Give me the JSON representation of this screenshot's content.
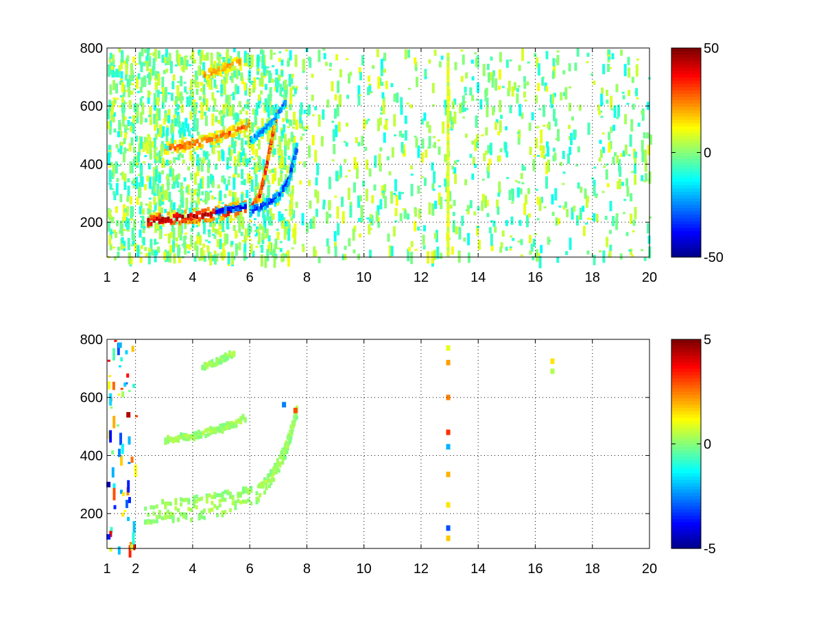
{
  "chart_data": [
    {
      "type": "heatmap",
      "title": "",
      "xlabel": "",
      "ylabel": "",
      "xlim": [
        1,
        20
      ],
      "ylim": [
        80,
        800
      ],
      "x_ticks": [
        1,
        2,
        4,
        6,
        8,
        10,
        12,
        14,
        16,
        18,
        20
      ],
      "y_ticks": [
        200,
        400,
        600,
        800
      ],
      "grid": true,
      "colormap": "jet",
      "colorbar": {
        "min": -50,
        "max": 50,
        "ticks": [
          50,
          0,
          -50
        ]
      },
      "features": [
        {
          "label": "lower band",
          "x": [
            2.4,
            2.8,
            3.4,
            4.0,
            4.6,
            5.2,
            5.8
          ],
          "y": [
            210,
            215,
            222,
            228,
            235,
            245,
            258
          ],
          "value": 48,
          "spread": 22
        },
        {
          "label": "lower band negative core",
          "x": [
            4.8,
            5.3,
            5.8
          ],
          "y": [
            245,
            252,
            262
          ],
          "value": -45,
          "spread": 8
        },
        {
          "label": "middle band",
          "x": [
            3.0,
            3.6,
            4.2,
            4.8,
            5.4,
            5.9
          ],
          "y": [
            460,
            470,
            482,
            498,
            520,
            545
          ],
          "value": 30,
          "spread": 18
        },
        {
          "label": "upper band",
          "x": [
            4.3,
            4.7,
            5.1,
            5.6
          ],
          "y": [
            710,
            725,
            740,
            760
          ],
          "value": 25,
          "spread": 16
        },
        {
          "label": "curve to 600",
          "x": [
            6.0,
            6.3,
            6.5,
            6.7,
            6.9
          ],
          "y": [
            255,
            300,
            380,
            480,
            580
          ],
          "value": 42,
          "spread": 10
        },
        {
          "label": "negative streak low",
          "x": [
            6.0,
            6.5,
            7.0,
            7.3,
            7.6
          ],
          "y": [
            245,
            270,
            300,
            350,
            460
          ],
          "value": -38,
          "spread": 14
        },
        {
          "label": "negative streak high",
          "x": [
            6.0,
            6.4,
            6.8,
            7.2
          ],
          "y": [
            490,
            520,
            560,
            620
          ],
          "value": -28,
          "spread": 12
        },
        {
          "label": "vertical stripe 13",
          "x": [
            12.9,
            12.9
          ],
          "y": [
            100,
            780
          ],
          "value": 14,
          "spread": 4
        }
      ],
      "noise": {
        "x_range": [
          1,
          20
        ],
        "values": [
          -12,
          12
        ],
        "density": "sparse"
      }
    },
    {
      "type": "heatmap",
      "title": "",
      "xlabel": "",
      "ylabel": "",
      "xlim": [
        1,
        20
      ],
      "ylim": [
        80,
        800
      ],
      "x_ticks": [
        1,
        2,
        4,
        6,
        8,
        10,
        12,
        14,
        16,
        18,
        20
      ],
      "y_ticks": [
        200,
        400,
        600,
        800
      ],
      "grid": true,
      "colormap": "jet",
      "colorbar": {
        "min": -5,
        "max": 5,
        "ticks": [
          5,
          0,
          -5
        ]
      },
      "features": [
        {
          "label": "lower region",
          "x": [
            2.3,
            3.0,
            4.0,
            5.0,
            6.0
          ],
          "y": [
            210,
            215,
            225,
            240,
            260
          ],
          "value": 0.4,
          "spread": 40
        },
        {
          "label": "middle band",
          "x": [
            3.0,
            4.0,
            5.0,
            5.8
          ],
          "y": [
            460,
            475,
            500,
            535
          ],
          "value": 0.4,
          "spread": 12
        },
        {
          "label": "upper band",
          "x": [
            4.3,
            4.8,
            5.4
          ],
          "y": [
            710,
            730,
            760
          ],
          "value": 0.4,
          "spread": 10
        },
        {
          "label": "rising streak",
          "x": [
            6.2,
            6.7,
            7.2,
            7.6
          ],
          "y": [
            270,
            330,
            420,
            560
          ],
          "value": 0.4,
          "spread": 25
        }
      ],
      "points": [
        {
          "x": 12.95,
          "y": 770,
          "value": 1.0
        },
        {
          "x": 12.95,
          "y": 720,
          "value": 2.2
        },
        {
          "x": 12.95,
          "y": 600,
          "value": 2.5
        },
        {
          "x": 12.95,
          "y": 480,
          "value": 3.3
        },
        {
          "x": 12.95,
          "y": 430,
          "value": -2.0
        },
        {
          "x": 12.95,
          "y": 335,
          "value": 2.0
        },
        {
          "x": 12.95,
          "y": 230,
          "value": 1.5
        },
        {
          "x": 12.95,
          "y": 150,
          "value": -3.0
        },
        {
          "x": 12.95,
          "y": 115,
          "value": 1.8
        },
        {
          "x": 16.6,
          "y": 690,
          "value": 0.5
        },
        {
          "x": 16.6,
          "y": 725,
          "value": 1.5
        },
        {
          "x": 1.45,
          "y": 780,
          "value": -2.0
        },
        {
          "x": 1.75,
          "y": 540,
          "value": 4.5
        },
        {
          "x": 7.6,
          "y": 555,
          "value": 3.0
        },
        {
          "x": 7.2,
          "y": 575,
          "value": -2.5
        },
        {
          "x": 1.05,
          "y": 300,
          "value": -4.5
        },
        {
          "x": 1.05,
          "y": 120,
          "value": -3.5
        }
      ],
      "noise": {
        "x_range": [
          1,
          2
        ],
        "values": [
          -4,
          4
        ],
        "density": "rare"
      }
    }
  ]
}
